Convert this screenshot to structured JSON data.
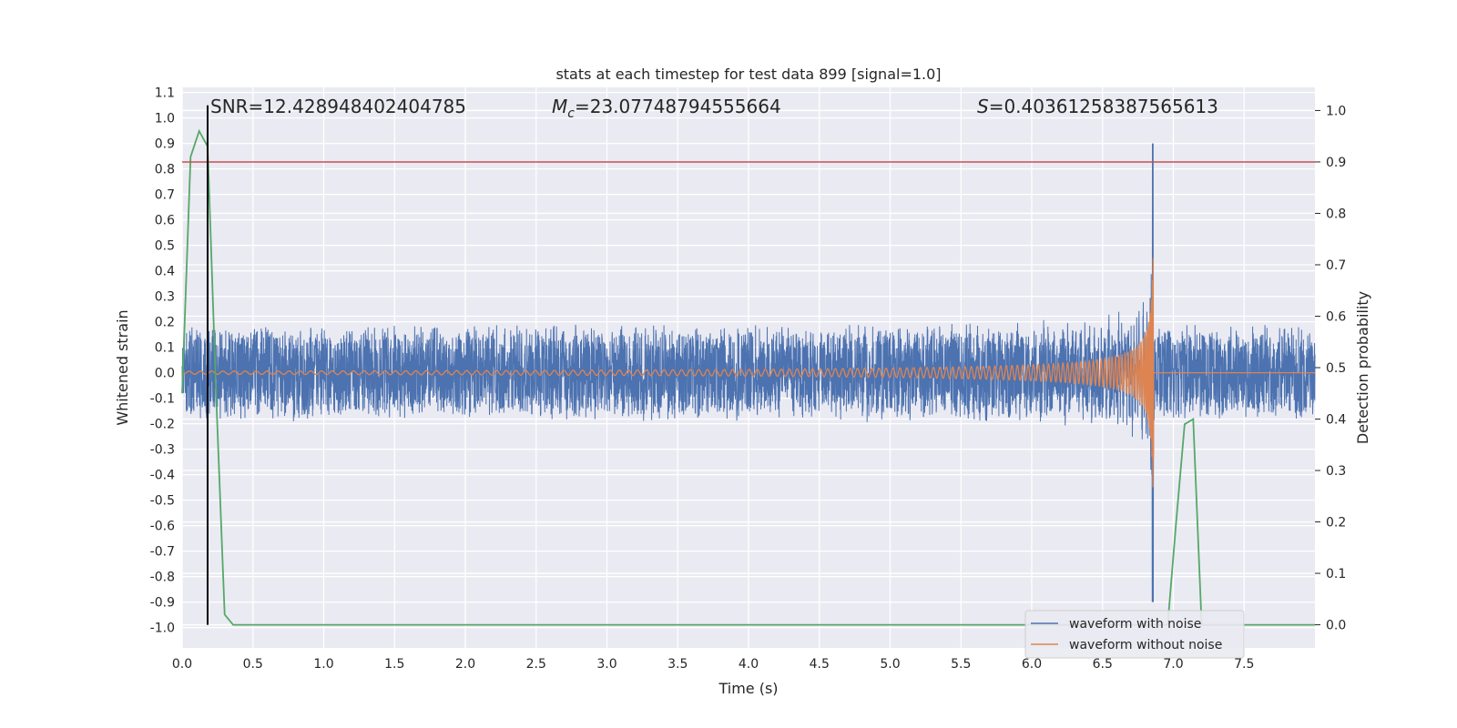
{
  "chart_data": {
    "type": "line",
    "title": "stats at each timestep for test data 899 [signal=1.0]",
    "xlabel": "Time (s)",
    "ylabel": "Whitened strain",
    "y2label": "Detection probability",
    "xlim": [
      0.0,
      8.0
    ],
    "ylim": [
      -1.08,
      1.12
    ],
    "y2lim": [
      -0.045,
      1.045
    ],
    "x_ticks": [
      "0.0",
      "0.5",
      "1.0",
      "1.5",
      "2.0",
      "2.5",
      "3.0",
      "3.5",
      "4.0",
      "4.5",
      "5.0",
      "5.5",
      "6.0",
      "6.5",
      "7.0",
      "7.5"
    ],
    "y_ticks": [
      "1.1",
      "1.0",
      "0.9",
      "0.8",
      "0.7",
      "0.6",
      "0.5",
      "0.4",
      "0.3",
      "0.2",
      "0.1",
      "0.0",
      "-0.1",
      "-0.2",
      "-0.3",
      "-0.4",
      "-0.5",
      "-0.6",
      "-0.7",
      "-0.8",
      "-0.9",
      "-1.0"
    ],
    "y2_ticks": [
      "1.0",
      "0.9",
      "0.8",
      "0.7",
      "0.6",
      "0.5",
      "0.4",
      "0.3",
      "0.2",
      "0.1",
      "0.0"
    ],
    "grid": true,
    "legend_position": "lower-right",
    "annotations": {
      "snr": "SNR=12.428948402404785",
      "mc_prefix": "M",
      "mc_sub": "c",
      "mc_value": "=23.07748794555664",
      "s_prefix": "S",
      "s_value": "=0.40361258387565613"
    },
    "threshold": {
      "axis": "y2",
      "value": 0.9,
      "color": "#c44e52"
    },
    "marker_line": {
      "x": 0.18,
      "y2_range": [
        0.0,
        1.01
      ],
      "color": "#000000"
    },
    "series": [
      {
        "name": "waveform with noise",
        "color": "#4c72b0",
        "description_values": {
          "noise_amplitude": 0.19,
          "x_start": 0.0,
          "x_end": 8.0
        }
      },
      {
        "name": "waveform without noise",
        "color": "#dd8452",
        "chirp": {
          "x_start": 0.0,
          "merger_time": 6.86,
          "peak_amplitude": 1.0,
          "x_end": 8.0
        }
      },
      {
        "axis": "y2",
        "color": "#55a868",
        "x": [
          0.0,
          0.06,
          0.12,
          0.18,
          0.24,
          0.3,
          0.36,
          0.42,
          1.0,
          2.0,
          3.0,
          4.0,
          5.0,
          6.0,
          6.9,
          6.96,
          7.02,
          7.08,
          7.14,
          7.2,
          7.26,
          8.0
        ],
        "values": [
          0.45,
          0.91,
          0.96,
          0.93,
          0.45,
          0.02,
          0.0,
          0.0,
          0.0,
          0.0,
          0.0,
          0.0,
          0.0,
          0.0,
          0.0,
          0.0,
          0.2,
          0.39,
          0.4,
          0.0,
          0.0,
          0.0
        ]
      }
    ]
  }
}
